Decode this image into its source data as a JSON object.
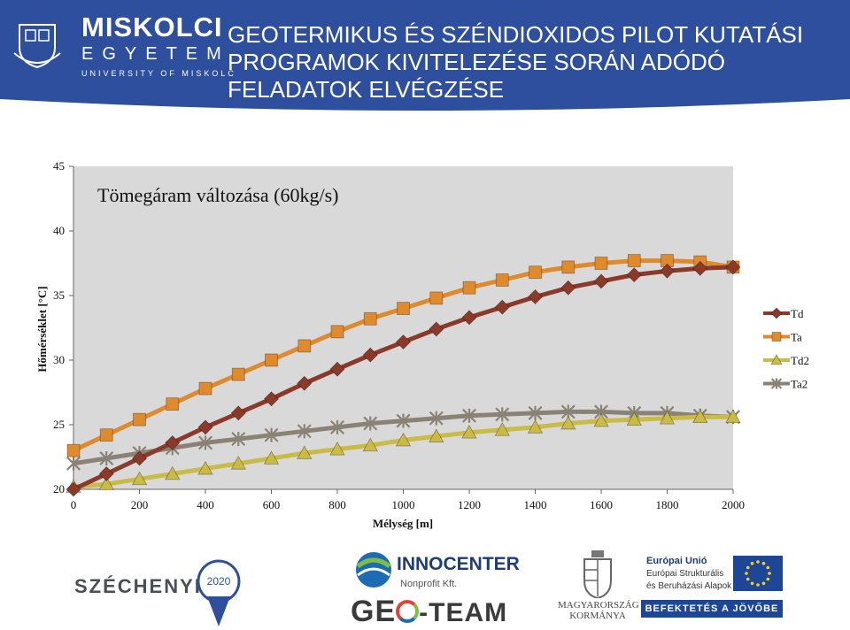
{
  "header": {
    "logo_main": "MISKOLCI",
    "logo_sub": "EGYETEM",
    "logo_en": "UNIVERSITY OF MISKOLC",
    "title_lines": [
      "GEOTERMIKUS ÉS SZÉNDIOXIDOS PILOT KUTATÁSI",
      "PROGRAMOK  KIVITELEZÉSE SORÁN ADÓDÓ",
      "FELADATOK ELVÉGZÉSE"
    ],
    "colors": {
      "banner": "#2d4f9e"
    }
  },
  "chart_data": {
    "type": "line",
    "title": "Tömegáram változása (60kg/s)",
    "xlabel": "Mélység [m]",
    "ylabel": "Hőmérséklet [°C]",
    "xlim": [
      0,
      2000
    ],
    "ylim": [
      20,
      45
    ],
    "xticks": [
      0,
      200,
      400,
      600,
      800,
      1000,
      1200,
      1400,
      1600,
      1800,
      2000
    ],
    "yticks": [
      20,
      25,
      30,
      35,
      40,
      45
    ],
    "grid": false,
    "legend_position": "right",
    "x": [
      0,
      100,
      200,
      300,
      400,
      500,
      600,
      700,
      800,
      900,
      1000,
      1100,
      1200,
      1300,
      1400,
      1500,
      1600,
      1700,
      1800,
      1900,
      2000
    ],
    "series": [
      {
        "name": "Td",
        "color": "#8b3a2a",
        "marker": "diamond",
        "values": [
          20.0,
          21.2,
          22.4,
          23.6,
          24.8,
          25.9,
          27.0,
          28.2,
          29.3,
          30.4,
          31.4,
          32.4,
          33.3,
          34.1,
          34.9,
          35.6,
          36.1,
          36.6,
          36.9,
          37.1,
          37.2
        ]
      },
      {
        "name": "Ta",
        "color": "#e08a2e",
        "marker": "square",
        "values": [
          23.0,
          24.2,
          25.4,
          26.6,
          27.8,
          28.9,
          30.0,
          31.1,
          32.2,
          33.2,
          34.0,
          34.8,
          35.6,
          36.2,
          36.8,
          37.2,
          37.5,
          37.7,
          37.7,
          37.6,
          37.2
        ]
      },
      {
        "name": "Td2",
        "color": "#c9bb45",
        "marker": "triangle",
        "values": [
          20.2,
          20.4,
          20.8,
          21.2,
          21.6,
          22.0,
          22.4,
          22.8,
          23.1,
          23.4,
          23.8,
          24.1,
          24.4,
          24.6,
          24.8,
          25.1,
          25.3,
          25.4,
          25.5,
          25.6,
          25.6
        ]
      },
      {
        "name": "Ta2",
        "color": "#8a8275",
        "marker": "star",
        "values": [
          22.0,
          22.4,
          22.8,
          23.2,
          23.6,
          23.9,
          24.2,
          24.5,
          24.8,
          25.1,
          25.3,
          25.5,
          25.7,
          25.8,
          25.9,
          26.0,
          26.0,
          25.9,
          25.9,
          25.7,
          25.6
        ]
      }
    ],
    "plot_background": "#d9d9d9"
  },
  "footer": {
    "szechenyi": "SZÉCHENYI",
    "szechenyi_year": "2020",
    "inno_name": "INNOCENTER",
    "inno_sub": "Nonprofit Kft.",
    "geo_team_a": "GE",
    "geo_team_b": "-TEAM",
    "hu_gov": "MAGYARORSZÁG KORMÁNYA",
    "eu_title": "Európai Unió",
    "eu_line1": "Európai Strukturális",
    "eu_line2": "és Beruházási Alapok",
    "eu_slogan": "BEFEKTETÉS A JÖVŐBE"
  }
}
